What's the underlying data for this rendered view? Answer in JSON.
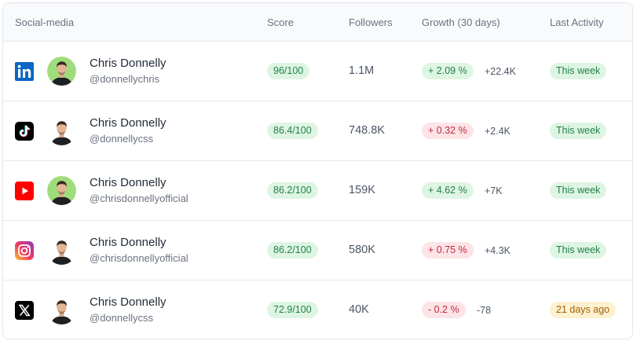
{
  "header": {
    "social_media": "Social-media",
    "score": "Score",
    "followers": "Followers",
    "growth": "Growth (30 days)",
    "last_activity": "Last Activity"
  },
  "rows": [
    {
      "platform_icon": "linkedin-icon",
      "name": "Chris Donnelly",
      "handle": "@donnellychris",
      "score": "96/100",
      "followers": "1.1M",
      "growth": "+ 2.09 %",
      "growth_trend": "up",
      "delta": "+22.4K",
      "last_activity": "This week",
      "activity_status": "recent",
      "avatar_bg": "#9fdc7c"
    },
    {
      "platform_icon": "tiktok-icon",
      "name": "Chris Donnelly",
      "handle": "@donnellycss",
      "score": "86.4/100",
      "followers": "748.8K",
      "growth": "+ 0.32 %",
      "growth_trend": "down",
      "delta": "+2.4K",
      "last_activity": "This week",
      "activity_status": "recent",
      "avatar_bg": "#ffffff"
    },
    {
      "platform_icon": "youtube-icon",
      "name": "Chris Donnelly",
      "handle": "@chrisdonnellyofficial",
      "score": "86.2/100",
      "followers": "159K",
      "growth": "+ 4.62 %",
      "growth_trend": "up",
      "delta": "+7K",
      "last_activity": "This week",
      "activity_status": "recent",
      "avatar_bg": "#9fdc7c"
    },
    {
      "platform_icon": "instagram-icon",
      "name": "Chris Donnelly",
      "handle": "@chrisdonnellyofficial",
      "score": "86.2/100",
      "followers": "580K",
      "growth": "+ 0.75 %",
      "growth_trend": "down",
      "delta": "+4.3K",
      "last_activity": "This week",
      "activity_status": "recent",
      "avatar_bg": "#ffffff"
    },
    {
      "platform_icon": "x-icon",
      "name": "Chris Donnelly",
      "handle": "@donnellycss",
      "score": "72.9/100",
      "followers": "40K",
      "growth": "- 0.2 %",
      "growth_trend": "down",
      "delta": "-78",
      "last_activity": "21 days ago",
      "activity_status": "old",
      "avatar_bg": "#ffffff"
    }
  ],
  "colors": {
    "positive_bg": "#def5e3",
    "positive_text": "#23814a",
    "negative_bg": "#fde4e7",
    "negative_text": "#c2293e",
    "warning_bg": "#fdf1cf",
    "warning_text": "#a16207"
  }
}
